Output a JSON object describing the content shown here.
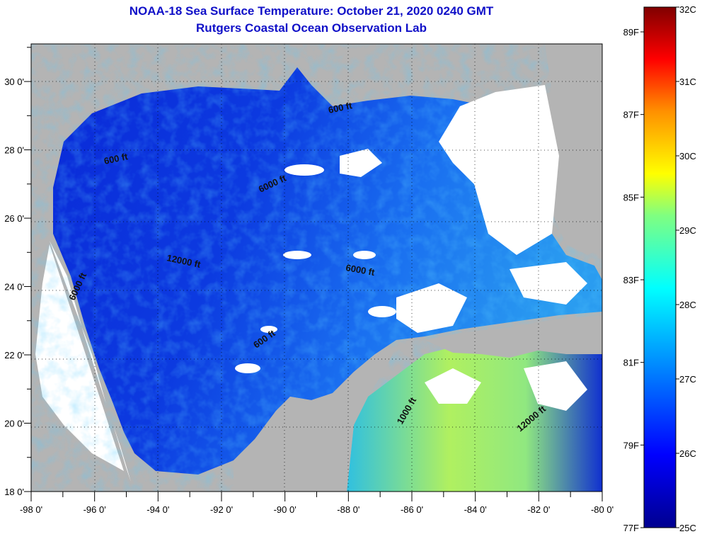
{
  "header": {
    "title": "NOAA-18 Sea Surface Temperature:  October 21, 2020 0240 GMT",
    "subtitle": "Rutgers Coastal Ocean Observation Lab"
  },
  "map": {
    "lon_range": [
      -98,
      -80
    ],
    "lat_range": [
      18,
      31.1
    ],
    "x_ticks": [
      "-98 0'",
      "-96 0'",
      "-94 0'",
      "-92 0'",
      "-90 0'",
      "-88 0'",
      "-86 0'",
      "-84 0'",
      "-82 0'",
      "-80 0'"
    ],
    "y_ticks": [
      "30 0'",
      "28 0'",
      "26 0'",
      "24 0'",
      "22 0'",
      "20 0'",
      "18 0'"
    ],
    "contour_labels": [
      "600 ft",
      "600 ft",
      "6000 ft",
      "12000 ft",
      "6000 ft",
      "6000 ft",
      "600 ft",
      "1000 ft",
      "12000 ft"
    ],
    "colors": {
      "land": "#b4b4b4",
      "no_data": "#ffffff"
    }
  },
  "colorbar": {
    "celsius": [
      "32C",
      "31C",
      "30C",
      "29C",
      "28C",
      "27C",
      "26C",
      "25C"
    ],
    "fahrenheit": [
      "89F",
      "87F",
      "85F",
      "83F",
      "81F",
      "79F",
      "77F"
    ],
    "range_c": [
      25,
      32
    ]
  }
}
